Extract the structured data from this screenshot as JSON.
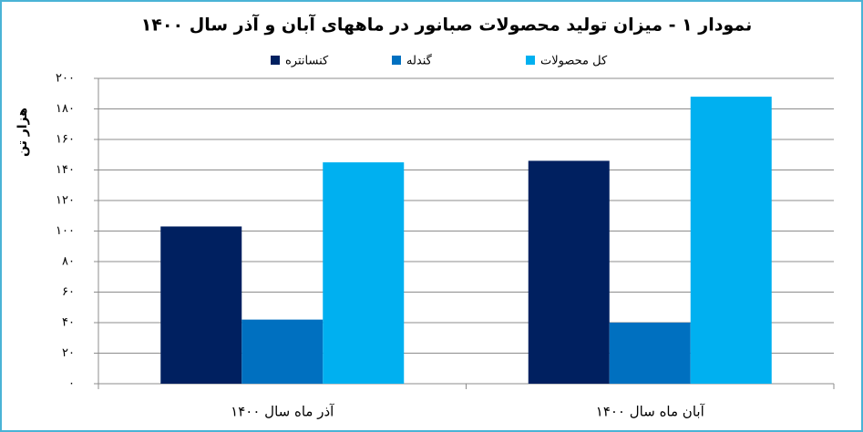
{
  "chart_data": {
    "type": "bar",
    "title": "نمودار ۱ - میزان تولید محصولات صبانور در ماههای آبان و آذر سال ۱۴۰۰",
    "y_label": "هزار تن",
    "categories": [
      "آذر ماه سال ۱۴۰۰",
      "آبان ماه سال ۱۴۰۰"
    ],
    "series": [
      {
        "name": "کنسانتره",
        "color": "#002060",
        "values": [
          103,
          146
        ]
      },
      {
        "name": "گندله",
        "color": "#0070c0",
        "values": [
          42,
          40
        ]
      },
      {
        "name": "کل محصولات",
        "color": "#00b0f0",
        "values": [
          145,
          188
        ]
      }
    ],
    "ylim": [
      0,
      200
    ],
    "yticks": [
      {
        "value": 0,
        "label": "۰"
      },
      {
        "value": 20,
        "label": "۲۰"
      },
      {
        "value": 40,
        "label": "۴۰"
      },
      {
        "value": 60,
        "label": "۶۰"
      },
      {
        "value": 80,
        "label": "۸۰"
      },
      {
        "value": 100,
        "label": "۱۰۰"
      },
      {
        "value": 120,
        "label": "۱۲۰"
      },
      {
        "value": 140,
        "label": "۱۴۰"
      },
      {
        "value": 160,
        "label": "۱۶۰"
      },
      {
        "value": 180,
        "label": "۱۸۰"
      },
      {
        "value": 200,
        "label": "۲۰۰"
      }
    ],
    "grid": true
  }
}
